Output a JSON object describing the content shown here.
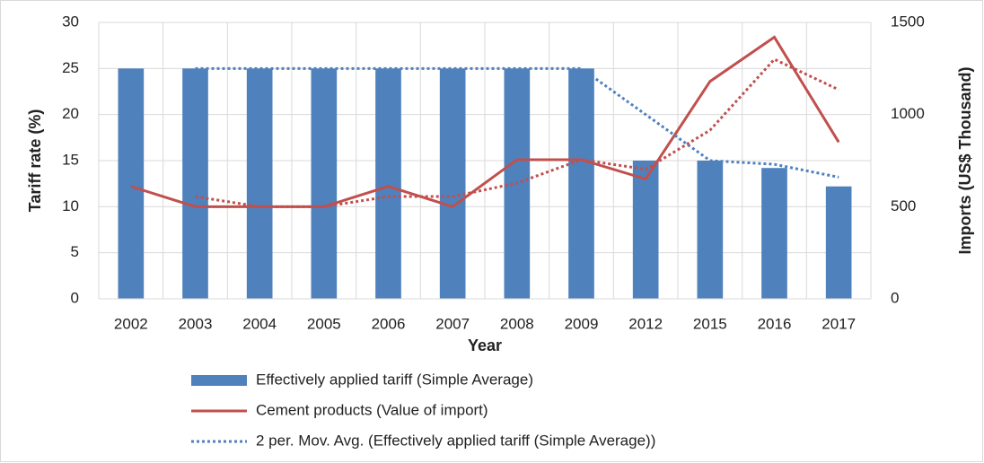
{
  "chart_data": {
    "type": "bar",
    "categories": [
      "2002",
      "2003",
      "2004",
      "2005",
      "2006",
      "2007",
      "2008",
      "2009",
      "2012",
      "2015",
      "2016",
      "2017"
    ],
    "x_label": "Year",
    "y_label": "Tariff rate (%)",
    "y2_label": "Imports (US$ Thousand)",
    "ylim": [
      0,
      30
    ],
    "yticks": [
      0,
      5,
      10,
      15,
      20,
      25,
      30
    ],
    "y2lim": [
      0,
      1500
    ],
    "y2ticks": [
      0,
      500,
      1000,
      1500
    ],
    "grid": true,
    "series": [
      {
        "name": "Effectively applied tariff (Simple Average)",
        "type": "bar",
        "color": "#4f81bd",
        "axis": "y",
        "values": [
          25,
          25,
          25,
          25,
          25,
          25,
          25,
          25,
          15,
          15,
          14.2,
          12.2
        ]
      },
      {
        "name": "Cement products (Value of import)",
        "type": "line",
        "style": "solid",
        "color": "#c0504d",
        "axis": "y2",
        "values": [
          610,
          500,
          500,
          500,
          610,
          500,
          755,
          755,
          650,
          1180,
          1420,
          850
        ]
      },
      {
        "name": "2 per. Mov. Avg. (Effectively applied tariff (Simple Average))",
        "type": "line",
        "style": "dotted",
        "color": "#4f81bd",
        "axis": "y",
        "values": [
          null,
          25,
          25,
          25,
          25,
          25,
          25,
          25,
          20,
          15,
          14.6,
          13.2
        ]
      },
      {
        "type": "line",
        "style": "dotted",
        "color": "#c0504d",
        "axis": "y2",
        "values": [
          null,
          555,
          500,
          500,
          555,
          555,
          628,
          755,
          703,
          915,
          1300,
          1135
        ]
      }
    ]
  }
}
